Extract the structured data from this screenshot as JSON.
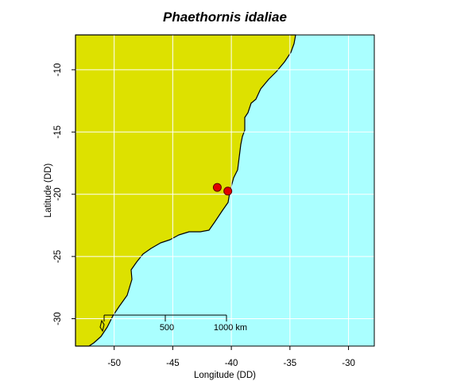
{
  "chart_data": {
    "type": "scatter",
    "title": "Phaethornis idaliae",
    "xlabel": "Longitude (DD)",
    "ylabel": "Latitude (DD)",
    "xlim": [
      -53.3,
      -27.8
    ],
    "ylim": [
      -32.2,
      -7.2
    ],
    "x_ticks": [
      -50,
      -45,
      -40,
      -35,
      -30
    ],
    "x_tick_labels": [
      "-50",
      "-45",
      "-40",
      "-35",
      "-30"
    ],
    "y_ticks": [
      -10,
      -15,
      -20,
      -25,
      -30
    ],
    "y_tick_labels": [
      "-10",
      "-15",
      "-20",
      "-25",
      "-30"
    ],
    "grid": true,
    "colors": {
      "land": "#dde100",
      "ocean": "#aaffff",
      "grid": "#ffffff",
      "point_fill": "#e00000",
      "point_stroke": "#5a0000"
    },
    "series": [
      {
        "points": [
          {
            "x": -41.2,
            "y": -19.45
          },
          {
            "x": -40.3,
            "y": -19.75
          }
        ]
      }
    ],
    "scale_bar": {
      "labels": [
        "500",
        "1000 km"
      ]
    }
  }
}
